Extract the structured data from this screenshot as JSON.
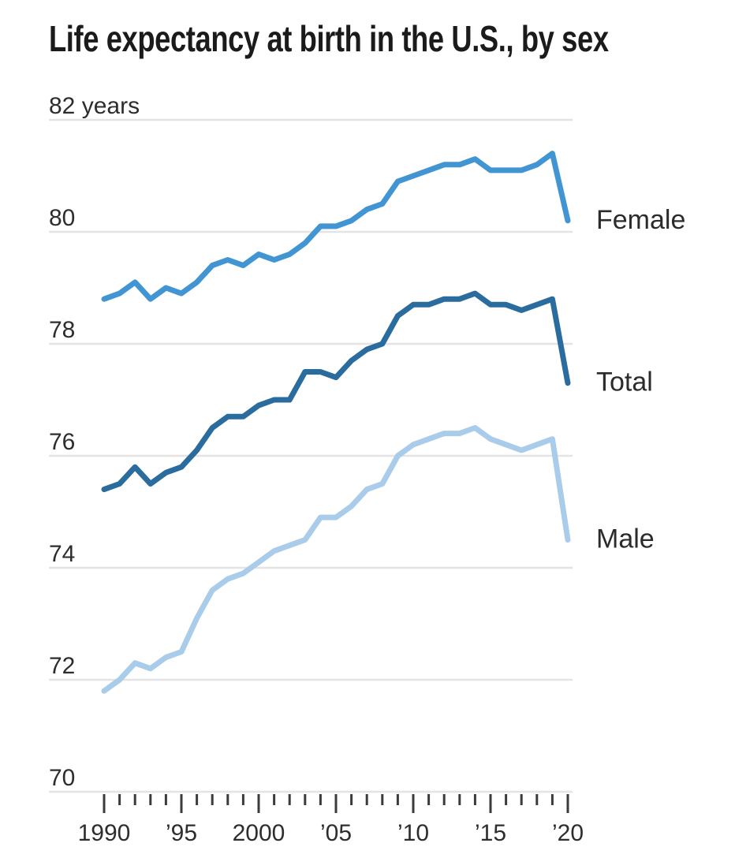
{
  "title": "Life expectancy at birth in the U.S., by sex",
  "colors": {
    "female_line": "#4295D3",
    "total_line": "#2B6C9F",
    "male_line": "#A9CCEA",
    "gridline": "#E4E4E4",
    "tick": "#3B3B3B",
    "axis_text": "#2D2D2D",
    "label_text": "#2B2B2B",
    "title_text": "#1B1B1B"
  },
  "chart_data": {
    "type": "line",
    "title": "Life expectancy at birth in the U.S., by sex",
    "xlabel": "",
    "ylabel": "years",
    "unit_top_label": "82 years",
    "grid": true,
    "legend_position": "right-of-line-ends",
    "ylim": [
      70,
      82
    ],
    "xlim": [
      1990,
      2020
    ],
    "ytick_values": [
      82,
      80,
      78,
      76,
      74,
      72,
      70
    ],
    "ytick_labels": [
      "82 years",
      "80",
      "78",
      "76",
      "74",
      "72",
      "70"
    ],
    "xtick_minor_every_year": true,
    "xtick_major_years": [
      1990,
      1995,
      2000,
      2005,
      2010,
      2015,
      2020
    ],
    "xtick_labels": [
      "1990",
      "’95",
      "2000",
      "’05",
      "’10",
      "’15",
      "’20"
    ],
    "x": [
      1990,
      1991,
      1992,
      1993,
      1994,
      1995,
      1996,
      1997,
      1998,
      1999,
      2000,
      2001,
      2002,
      2003,
      2004,
      2005,
      2006,
      2007,
      2008,
      2009,
      2010,
      2011,
      2012,
      2013,
      2014,
      2015,
      2016,
      2017,
      2018,
      2019,
      2020
    ],
    "series": [
      {
        "name": "Female",
        "color": "#4295D3",
        "values": [
          78.8,
          78.9,
          79.1,
          78.8,
          79.0,
          78.9,
          79.1,
          79.4,
          79.5,
          79.4,
          79.6,
          79.5,
          79.6,
          79.8,
          80.1,
          80.1,
          80.2,
          80.4,
          80.5,
          80.9,
          81.0,
          81.1,
          81.2,
          81.2,
          81.3,
          81.1,
          81.1,
          81.1,
          81.2,
          81.4,
          80.2
        ]
      },
      {
        "name": "Total",
        "color": "#2B6C9F",
        "values": [
          75.4,
          75.5,
          75.8,
          75.5,
          75.7,
          75.8,
          76.1,
          76.5,
          76.7,
          76.7,
          76.9,
          77.0,
          77.0,
          77.5,
          77.5,
          77.4,
          77.7,
          77.9,
          78.0,
          78.5,
          78.7,
          78.7,
          78.8,
          78.8,
          78.9,
          78.7,
          78.7,
          78.6,
          78.7,
          78.8,
          77.3
        ]
      },
      {
        "name": "Male",
        "color": "#A9CCEA",
        "values": [
          71.8,
          72.0,
          72.3,
          72.2,
          72.4,
          72.5,
          73.1,
          73.6,
          73.8,
          73.9,
          74.1,
          74.3,
          74.4,
          74.5,
          74.9,
          74.9,
          75.1,
          75.4,
          75.5,
          76.0,
          76.2,
          76.3,
          76.4,
          76.4,
          76.5,
          76.3,
          76.2,
          76.1,
          76.2,
          76.3,
          74.5
        ]
      }
    ]
  }
}
